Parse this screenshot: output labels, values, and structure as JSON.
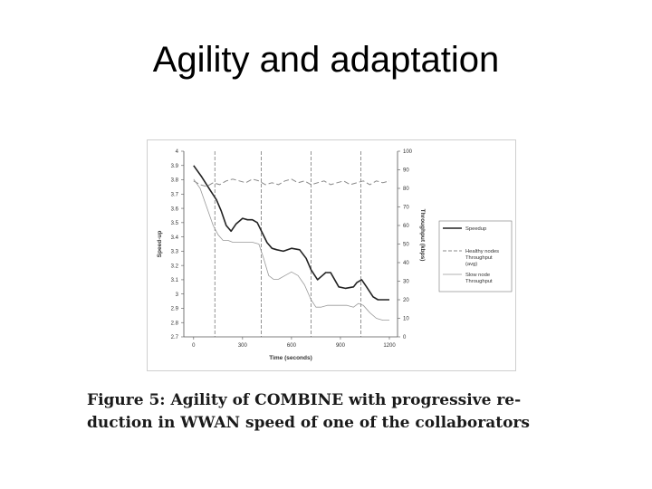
{
  "slide": {
    "title": "Agility and adaptation"
  },
  "caption": {
    "line1": "Figure 5: Agility of COMBINE with progressive re-",
    "line2": "duction in WWAN speed of one of the collaborators"
  },
  "chart_data": {
    "type": "line",
    "xlabel": "Time (seconds)",
    "ylabel": "Speed-up",
    "y2label": "Throughput (kbps)",
    "xlim": [
      -60,
      1250
    ],
    "ylim": [
      2.7,
      4.0
    ],
    "y2lim": [
      0,
      100
    ],
    "x_ticks": [
      0,
      300,
      600,
      900,
      1200
    ],
    "y_ticks": [
      2.7,
      2.8,
      2.9,
      3.0,
      3.1,
      3.2,
      3.3,
      3.4,
      3.5,
      3.6,
      3.7,
      3.8,
      3.9,
      4.0
    ],
    "y_tick_labels": [
      "2.7",
      "2.8",
      "2.9",
      "3",
      "3.1",
      "3.2",
      "3.3",
      "3.4",
      "3.5",
      "3.6",
      "3.7",
      "3.8",
      "3.9",
      "4"
    ],
    "y2_ticks": [
      0,
      10,
      20,
      30,
      40,
      50,
      60,
      70,
      80,
      90,
      100
    ],
    "vlines": [
      130,
      415,
      720,
      1025
    ],
    "grid": false,
    "legend_position": "right",
    "colors": {
      "speedup": "#222222",
      "healthy": "#888888",
      "slow": "#999999"
    },
    "series": [
      {
        "name": "Speedup",
        "axis": "left",
        "style": "solid-thick",
        "x": [
          0,
          50,
          100,
          140,
          170,
          200,
          230,
          260,
          300,
          330,
          360,
          390,
          420,
          450,
          480,
          510,
          550,
          600,
          650,
          690,
          720,
          760,
          790,
          810,
          840,
          860,
          890,
          930,
          980,
          1000,
          1030,
          1060,
          1100,
          1130,
          1160,
          1200
        ],
        "y": [
          3.9,
          3.82,
          3.73,
          3.66,
          3.58,
          3.48,
          3.44,
          3.49,
          3.53,
          3.52,
          3.52,
          3.5,
          3.43,
          3.36,
          3.32,
          3.31,
          3.3,
          3.32,
          3.31,
          3.25,
          3.17,
          3.1,
          3.13,
          3.15,
          3.15,
          3.11,
          3.05,
          3.04,
          3.05,
          3.08,
          3.1,
          3.05,
          2.98,
          2.96,
          2.96,
          2.96
        ]
      },
      {
        "name": "Healthy nodes Throughput (avg)",
        "axis": "right",
        "style": "dashed",
        "x": [
          0,
          40,
          80,
          120,
          160,
          200,
          240,
          280,
          320,
          360,
          400,
          440,
          480,
          520,
          560,
          600,
          640,
          680,
          720,
          760,
          800,
          840,
          880,
          920,
          960,
          1000,
          1040,
          1080,
          1120,
          1160,
          1200
        ],
        "y": [
          84,
          82,
          81,
          83,
          82,
          84,
          85,
          84,
          83,
          85,
          84,
          82,
          83,
          82,
          84,
          85,
          83,
          84,
          82,
          83,
          84,
          82,
          83,
          84,
          82,
          83,
          84,
          82,
          84,
          83,
          84
        ]
      },
      {
        "name": "Slow node Throughput",
        "axis": "right",
        "style": "solid-thin",
        "x": [
          0,
          40,
          80,
          120,
          150,
          180,
          210,
          240,
          280,
          320,
          360,
          400,
          430,
          460,
          490,
          520,
          560,
          600,
          640,
          680,
          720,
          750,
          780,
          820,
          860,
          900,
          940,
          980,
          1010,
          1040,
          1080,
          1120,
          1160,
          1200
        ],
        "y": [
          85,
          80,
          70,
          60,
          55,
          52,
          52,
          51,
          51,
          51,
          51,
          50,
          42,
          33,
          31,
          31,
          33,
          35,
          33,
          28,
          20,
          16,
          16,
          17,
          17,
          17,
          17,
          16,
          18,
          17,
          13,
          10,
          9,
          9
        ]
      }
    ],
    "legend": [
      {
        "label": "Speedup",
        "style": "solid-thick"
      },
      {
        "label": "Healthy nodes Throughput (avg)",
        "style": "dashed"
      },
      {
        "label": "Slow node Throughput",
        "style": "solid-thin"
      }
    ]
  }
}
